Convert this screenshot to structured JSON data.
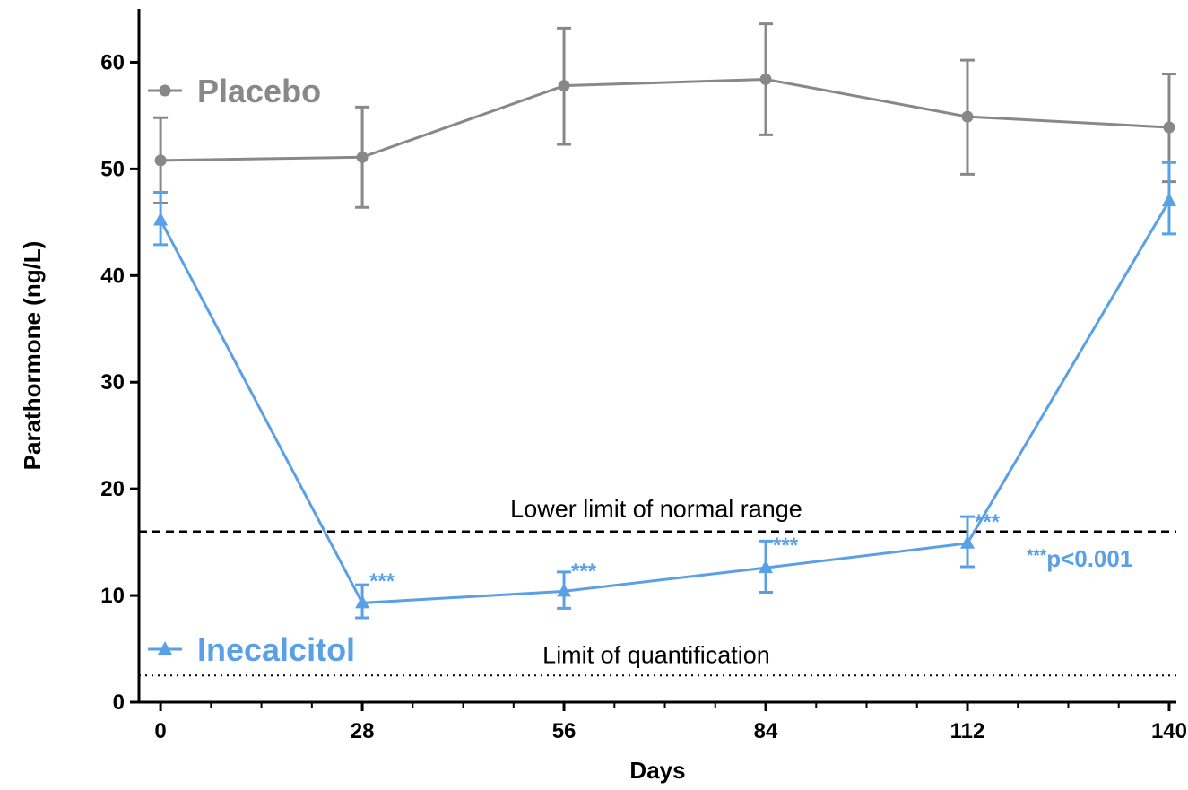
{
  "chart_data": {
    "type": "line",
    "xlabel": "Days",
    "ylabel": "Parathormone (ng/L)",
    "xlim": [
      -3,
      141
    ],
    "ylim": [
      0,
      65
    ],
    "x_ticks": [
      0,
      28,
      56,
      84,
      112,
      140
    ],
    "y_ticks": [
      0,
      10,
      20,
      30,
      40,
      50,
      60
    ],
    "x_minor_step": 7,
    "series": [
      {
        "name": "Placebo",
        "color": "#888888",
        "marker": "circle",
        "x": [
          0,
          28,
          56,
          84,
          112,
          140
        ],
        "values": [
          50.8,
          51.1,
          57.8,
          58.4,
          54.9,
          53.9
        ],
        "error_upper": [
          54.8,
          55.8,
          63.2,
          63.6,
          60.2,
          58.9
        ],
        "error_lower": [
          46.8,
          46.4,
          52.3,
          53.2,
          49.5,
          48.8
        ]
      },
      {
        "name": "Inecalcitol",
        "color": "#5aa0e6",
        "marker": "triangle",
        "x": [
          0,
          28,
          56,
          84,
          112,
          140
        ],
        "values": [
          45.2,
          9.3,
          10.4,
          12.6,
          14.9,
          47.0
        ],
        "error_upper": [
          47.8,
          11.0,
          12.2,
          15.1,
          17.4,
          50.6
        ],
        "error_lower": [
          42.9,
          7.9,
          8.8,
          10.3,
          12.7,
          43.9
        ]
      }
    ],
    "significance_marks": [
      {
        "x": 28,
        "text": "***"
      },
      {
        "x": 56,
        "text": "***"
      },
      {
        "x": 84,
        "text": "***"
      },
      {
        "x": 112,
        "text": "***"
      }
    ],
    "reference_lines": [
      {
        "y": 16,
        "style": "dashed",
        "label": "Lower limit of normal range"
      },
      {
        "y": 2.5,
        "style": "dotted",
        "label": "Limit of quantification"
      }
    ],
    "annotation": {
      "prefix": "***",
      "text": "p<0.001"
    },
    "legend_placement": "inline",
    "grid": false
  }
}
